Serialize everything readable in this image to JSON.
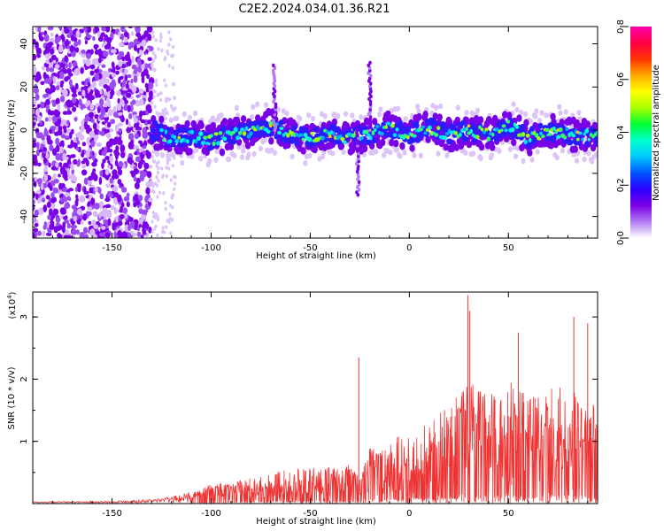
{
  "title": "C2E2.2024.034.01.36.R21",
  "chart_data": [
    {
      "type": "heatmap",
      "name": "spectrogram",
      "xlabel": "Height of straight line (km)",
      "ylabel": "Frequency (Hz)",
      "xlim": [
        -190,
        95
      ],
      "ylim": [
        -50,
        48
      ],
      "xticks": [
        "-150",
        "-100",
        "-50",
        "0",
        "50"
      ],
      "xtick_values": [
        -150,
        -100,
        -50,
        0,
        50
      ],
      "yticks": [
        "-40",
        "-20",
        "0",
        "20",
        "40"
      ],
      "ytick_values": [
        -40,
        -20,
        0,
        20,
        40
      ],
      "colorbar": {
        "label": "Normalized spectral amplitude",
        "range": [
          0.0,
          0.8
        ],
        "ticks": [
          "0.0",
          "0.2",
          "0.4",
          "0.6",
          "0.8"
        ],
        "tick_values": [
          0.0,
          0.2,
          0.4,
          0.6,
          0.8
        ],
        "colors": [
          "#ffffff",
          "#b07cf2",
          "#7a00e6",
          "#2a00ff",
          "#0055ff",
          "#00c8ff",
          "#00ffcc",
          "#00ff33",
          "#a8ff00",
          "#ffff00",
          "#ffaa00",
          "#ff3300",
          "#ff0044",
          "#ff00aa"
        ]
      },
      "noise_region_km": [
        -190,
        -130
      ],
      "band_center_hz": [
        [
          -130,
          0
        ],
        [
          -120,
          -4
        ],
        [
          -110,
          -3
        ],
        [
          -100,
          -5
        ],
        [
          -90,
          -2
        ],
        [
          -80,
          -1
        ],
        [
          -70,
          2
        ],
        [
          -60,
          -2
        ],
        [
          -50,
          -4
        ],
        [
          -40,
          -2
        ],
        [
          -30,
          -4
        ],
        [
          -20,
          -2
        ],
        [
          -10,
          1
        ],
        [
          0,
          -2
        ],
        [
          10,
          1
        ],
        [
          20,
          -2
        ],
        [
          30,
          0
        ],
        [
          40,
          -2
        ],
        [
          50,
          2
        ],
        [
          60,
          -4
        ],
        [
          70,
          0
        ],
        [
          80,
          -2
        ],
        [
          90,
          -3
        ]
      ],
      "band_spikes": [
        {
          "km": -68,
          "hz_min": 0,
          "hz_max": 30
        },
        {
          "km": -20,
          "hz_min": 0,
          "hz_max": 32
        },
        {
          "km": -26,
          "hz_min": -30,
          "hz_max": 0
        }
      ]
    },
    {
      "type": "line",
      "name": "snr",
      "xlabel": "Height of straight line (km)",
      "ylabel": "SNR (10 * v/v)",
      "y_multiplier": "(x10",
      "y_multiplier_exp": "4",
      "y_multiplier_close": ")",
      "xlim": [
        -190,
        95
      ],
      "ylim": [
        0,
        3.4
      ],
      "xticks": [
        "-150",
        "-100",
        "-50",
        "0",
        "50"
      ],
      "xtick_values": [
        -150,
        -100,
        -50,
        0,
        50
      ],
      "yticks": [
        "1",
        "2",
        "3"
      ],
      "ytick_values": [
        1,
        2,
        3
      ],
      "color": "#ee3333",
      "envelope": [
        [
          -190,
          0.02
        ],
        [
          -150,
          0.03
        ],
        [
          -130,
          0.06
        ],
        [
          -120,
          0.1
        ],
        [
          -110,
          0.18
        ],
        [
          -100,
          0.3
        ],
        [
          -90,
          0.35
        ],
        [
          -80,
          0.4
        ],
        [
          -70,
          0.48
        ],
        [
          -60,
          0.55
        ],
        [
          -50,
          0.6
        ],
        [
          -40,
          0.58
        ],
        [
          -30,
          0.62
        ],
        [
          -25,
          0.45
        ],
        [
          -20,
          0.9
        ],
        [
          -15,
          0.85
        ],
        [
          -10,
          1.1
        ],
        [
          0,
          1.05
        ],
        [
          10,
          1.3
        ],
        [
          20,
          1.6
        ],
        [
          30,
          2.0
        ],
        [
          40,
          1.75
        ],
        [
          50,
          2.0
        ],
        [
          60,
          1.7
        ],
        [
          70,
          1.9
        ],
        [
          80,
          1.85
        ],
        [
          95,
          1.6
        ]
      ],
      "peaks": [
        {
          "x": -25.5,
          "y": 2.35
        },
        {
          "x": 29.5,
          "y": 3.35
        },
        {
          "x": 30.5,
          "y": 3.1
        },
        {
          "x": 55,
          "y": 2.75
        },
        {
          "x": 83,
          "y": 3.0
        },
        {
          "x": 90,
          "y": 2.9
        }
      ]
    }
  ]
}
